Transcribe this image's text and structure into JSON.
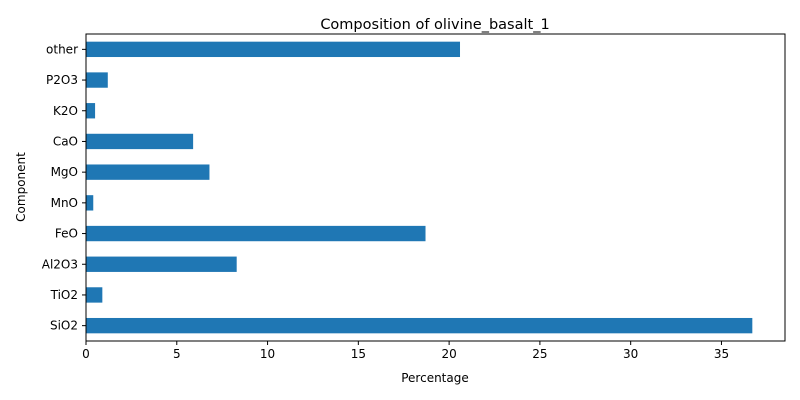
{
  "chart_data": {
    "type": "bar",
    "orientation": "horizontal",
    "title": "Composition of olivine_basalt_1",
    "xlabel": "Percentage",
    "ylabel": "Component",
    "categories": [
      "SiO2",
      "TiO2",
      "Al2O3",
      "FeO",
      "MnO",
      "MgO",
      "CaO",
      "K2O",
      "P2O3",
      "other"
    ],
    "values": [
      36.7,
      0.9,
      8.3,
      18.7,
      0.4,
      6.8,
      5.9,
      0.5,
      1.2,
      20.6
    ],
    "xlim": [
      0,
      38.5
    ],
    "xticks": [
      0,
      5,
      10,
      15,
      20,
      25,
      30,
      35
    ],
    "grid": false,
    "bar_color": "#1f77b4"
  }
}
